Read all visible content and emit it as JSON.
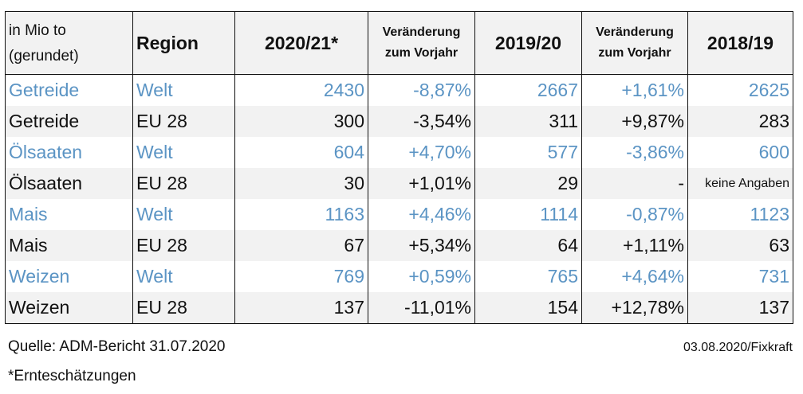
{
  "header": {
    "unit_line1": "in Mio to",
    "unit_line2": "(gerundet)",
    "region": "Region",
    "y2020": "2020/21*",
    "change_line1": "Veränderung",
    "change_line2": "zum Vorjahr",
    "y2019": "2019/20",
    "y2018": "2018/19"
  },
  "rows": [
    {
      "product": "Getreide",
      "region": "Welt",
      "v2020": "2430",
      "c2020": "-8,87%",
      "v2019": "2667",
      "c2019": "+1,61%",
      "v2018": "2625"
    },
    {
      "product": "Getreide",
      "region": "EU 28",
      "v2020": "300",
      "c2020": "-3,54%",
      "v2019": "311",
      "c2019": "+9,87%",
      "v2018": "283"
    },
    {
      "product": "Ölsaaten",
      "region": "Welt",
      "v2020": "604",
      "c2020": "+4,70%",
      "v2019": "577",
      "c2019": "-3,86%",
      "v2018": "600"
    },
    {
      "product": "Ölsaaten",
      "region": "EU 28",
      "v2020": "30",
      "c2020": "+1,01%",
      "v2019": "29",
      "c2019": "-",
      "v2018": "keine Angaben"
    },
    {
      "product": "Mais",
      "region": "Welt",
      "v2020": "1163",
      "c2020": "+4,46%",
      "v2019": "1114",
      "c2019": "-0,87%",
      "v2018": "1123"
    },
    {
      "product": "Mais",
      "region": "EU 28",
      "v2020": "67",
      "c2020": "+5,34%",
      "v2019": "64",
      "c2019": "+1,11%",
      "v2018": "63"
    },
    {
      "product": "Weizen",
      "region": "Welt",
      "v2020": "769",
      "c2020": "+0,59%",
      "v2019": "765",
      "c2019": "+4,64%",
      "v2018": "731"
    },
    {
      "product": "Weizen",
      "region": "EU 28",
      "v2020": "137",
      "c2020": "-11,01%",
      "v2019": "154",
      "c2019": "+12,78%",
      "v2018": "137"
    }
  ],
  "footer": {
    "source": "Quelle: ADM-Bericht 31.07.2020",
    "date": "03.08.2020/Fixkraft",
    "note": "*Ernteschätzungen"
  },
  "colors": {
    "welt_text": "#5b94c4",
    "shade": "#f2f2f2"
  }
}
